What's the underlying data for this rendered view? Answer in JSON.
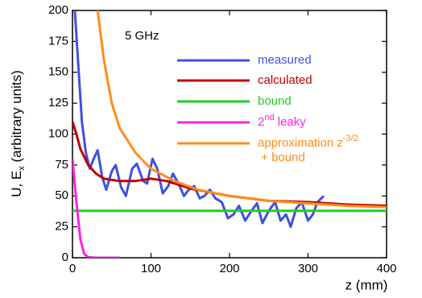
{
  "chart_data": {
    "type": "line",
    "annotation": "5 GHz",
    "xlabel": "z (mm)",
    "ylabel": "U, Ex (arbitrary units)",
    "xlim": [
      0,
      400
    ],
    "xticks": [
      0,
      100,
      200,
      300,
      400
    ],
    "ylim": [
      0,
      200
    ],
    "yticks": [
      0,
      25,
      50,
      75,
      100,
      125,
      150,
      175,
      200
    ],
    "legend": "upper right",
    "series": [
      {
        "name": "measured",
        "color": "#3f51e0",
        "x": [
          3,
          8,
          12,
          17,
          22,
          27,
          32,
          38,
          43,
          50,
          55,
          62,
          68,
          76,
          82,
          90,
          95,
          102,
          108,
          115,
          122,
          128,
          135,
          142,
          148,
          155,
          162,
          168,
          175,
          182,
          190,
          198,
          205,
          212,
          220,
          228,
          235,
          242,
          250,
          258,
          265,
          272,
          278,
          285,
          292,
          300,
          306,
          312,
          320
        ],
        "values": [
          200,
          150,
          110,
          85,
          72,
          80,
          87,
          65,
          55,
          70,
          75,
          57,
          50,
          72,
          76,
          62,
          60,
          80,
          72,
          52,
          58,
          68,
          60,
          50,
          55,
          58,
          48,
          50,
          55,
          48,
          45,
          32,
          35,
          42,
          30,
          38,
          44,
          28,
          38,
          45,
          30,
          35,
          25,
          40,
          45,
          30,
          35,
          45,
          50
        ]
      },
      {
        "name": "calculated",
        "color": "#c00000",
        "x": [
          0,
          5,
          10,
          20,
          30,
          40,
          60,
          80,
          100,
          120,
          150,
          200,
          250,
          300,
          350,
          400
        ],
        "values": [
          110,
          100,
          88,
          75,
          68,
          64,
          62,
          62,
          64,
          62,
          56,
          50,
          46,
          45,
          43,
          42
        ]
      },
      {
        "name": "bound",
        "color": "#22cc22",
        "x": [
          0,
          400
        ],
        "values": [
          38,
          38
        ]
      },
      {
        "name": "2nd leaky",
        "color": "#ff22dd",
        "x": [
          0,
          5,
          10,
          15,
          20,
          30,
          60
        ],
        "values": [
          80,
          45,
          15,
          3,
          0.5,
          0,
          0
        ]
      },
      {
        "name": "approximation z-3/2 + bound",
        "color": "#ff8c1a",
        "x": [
          32,
          40,
          50,
          60,
          80,
          100,
          130,
          160,
          200,
          250,
          300,
          350,
          400
        ],
        "values": [
          200,
          160,
          125,
          105,
          85,
          72,
          62,
          55,
          50,
          46,
          44,
          42,
          41
        ]
      }
    ]
  }
}
